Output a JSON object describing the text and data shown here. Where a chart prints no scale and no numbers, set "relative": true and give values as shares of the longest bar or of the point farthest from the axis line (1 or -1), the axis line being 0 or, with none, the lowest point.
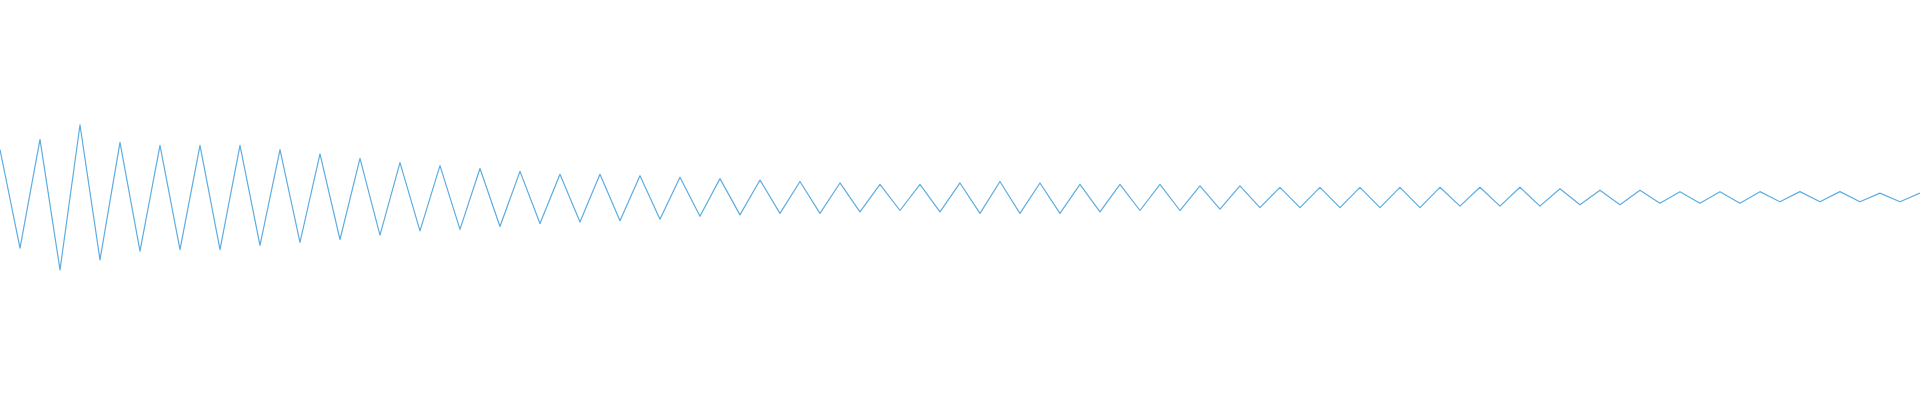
{
  "chart_data": {
    "type": "line",
    "relative": true,
    "color": "#5dade2",
    "categories": [
      null,
      null,
      null,
      null,
      null,
      null,
      null,
      null,
      null,
      null,
      null,
      null,
      null,
      null,
      null,
      null,
      null,
      null,
      null,
      null,
      null,
      null,
      null,
      null,
      null,
      null,
      null,
      null,
      null,
      null,
      null,
      null,
      null,
      null,
      null,
      null,
      null,
      null,
      null,
      null,
      null,
      null,
      null,
      null,
      null,
      null,
      null,
      null,
      null,
      null,
      null,
      null,
      null,
      null,
      null,
      null,
      null,
      null,
      null,
      null,
      null,
      null,
      null,
      null,
      null,
      null,
      null,
      null,
      null,
      null,
      null,
      null,
      null,
      null,
      null,
      null,
      null,
      null,
      null,
      null,
      null,
      null,
      null,
      null,
      null,
      null,
      null,
      null,
      null,
      null,
      null,
      null,
      null,
      null,
      null,
      null,
      null
    ],
    "values": [
      0.83,
      0.15,
      0.9,
      0.0,
      1.0,
      0.07,
      0.88,
      0.13,
      0.86,
      0.14,
      0.86,
      0.14,
      0.86,
      0.17,
      0.83,
      0.19,
      0.8,
      0.21,
      0.77,
      0.24,
      0.74,
      0.27,
      0.72,
      0.28,
      0.7,
      0.3,
      0.68,
      0.32,
      0.66,
      0.33,
      0.66,
      0.34,
      0.65,
      0.35,
      0.64,
      0.37,
      0.63,
      0.38,
      0.62,
      0.39,
      0.61,
      0.39,
      0.6,
      0.4,
      0.59,
      0.41,
      0.59,
      0.4,
      0.6,
      0.39,
      0.61,
      0.39,
      0.6,
      0.39,
      0.59,
      0.4,
      0.59,
      0.41,
      0.59,
      0.41,
      0.58,
      0.42,
      0.58,
      0.43,
      0.57,
      0.43,
      0.57,
      0.43,
      0.57,
      0.43,
      0.57,
      0.43,
      0.57,
      0.44,
      0.57,
      0.44,
      0.57,
      0.44,
      0.56,
      0.45,
      0.55,
      0.45,
      0.55,
      0.46,
      0.54,
      0.46,
      0.54,
      0.46,
      0.54,
      0.47,
      0.54,
      0.47,
      0.54,
      0.47,
      0.53,
      0.47,
      0.53
    ]
  }
}
